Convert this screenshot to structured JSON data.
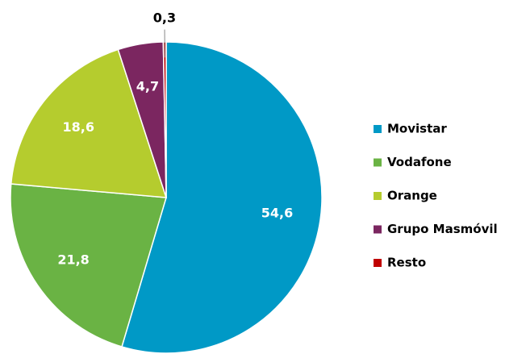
{
  "chart_data": {
    "type": "pie",
    "categories": [
      "Movistar",
      "Vodafone",
      "Orange",
      "Grupo Masmóvil",
      "Resto"
    ],
    "values": [
      54.6,
      21.8,
      18.6,
      4.7,
      0.3
    ],
    "value_labels": [
      "54,6",
      "21,8",
      "18,6",
      "4,7",
      "0,3"
    ],
    "colors": [
      "#0099c6",
      "#6ab344",
      "#b5cc2e",
      "#7b2660",
      "#c00000"
    ],
    "legend": "right"
  }
}
